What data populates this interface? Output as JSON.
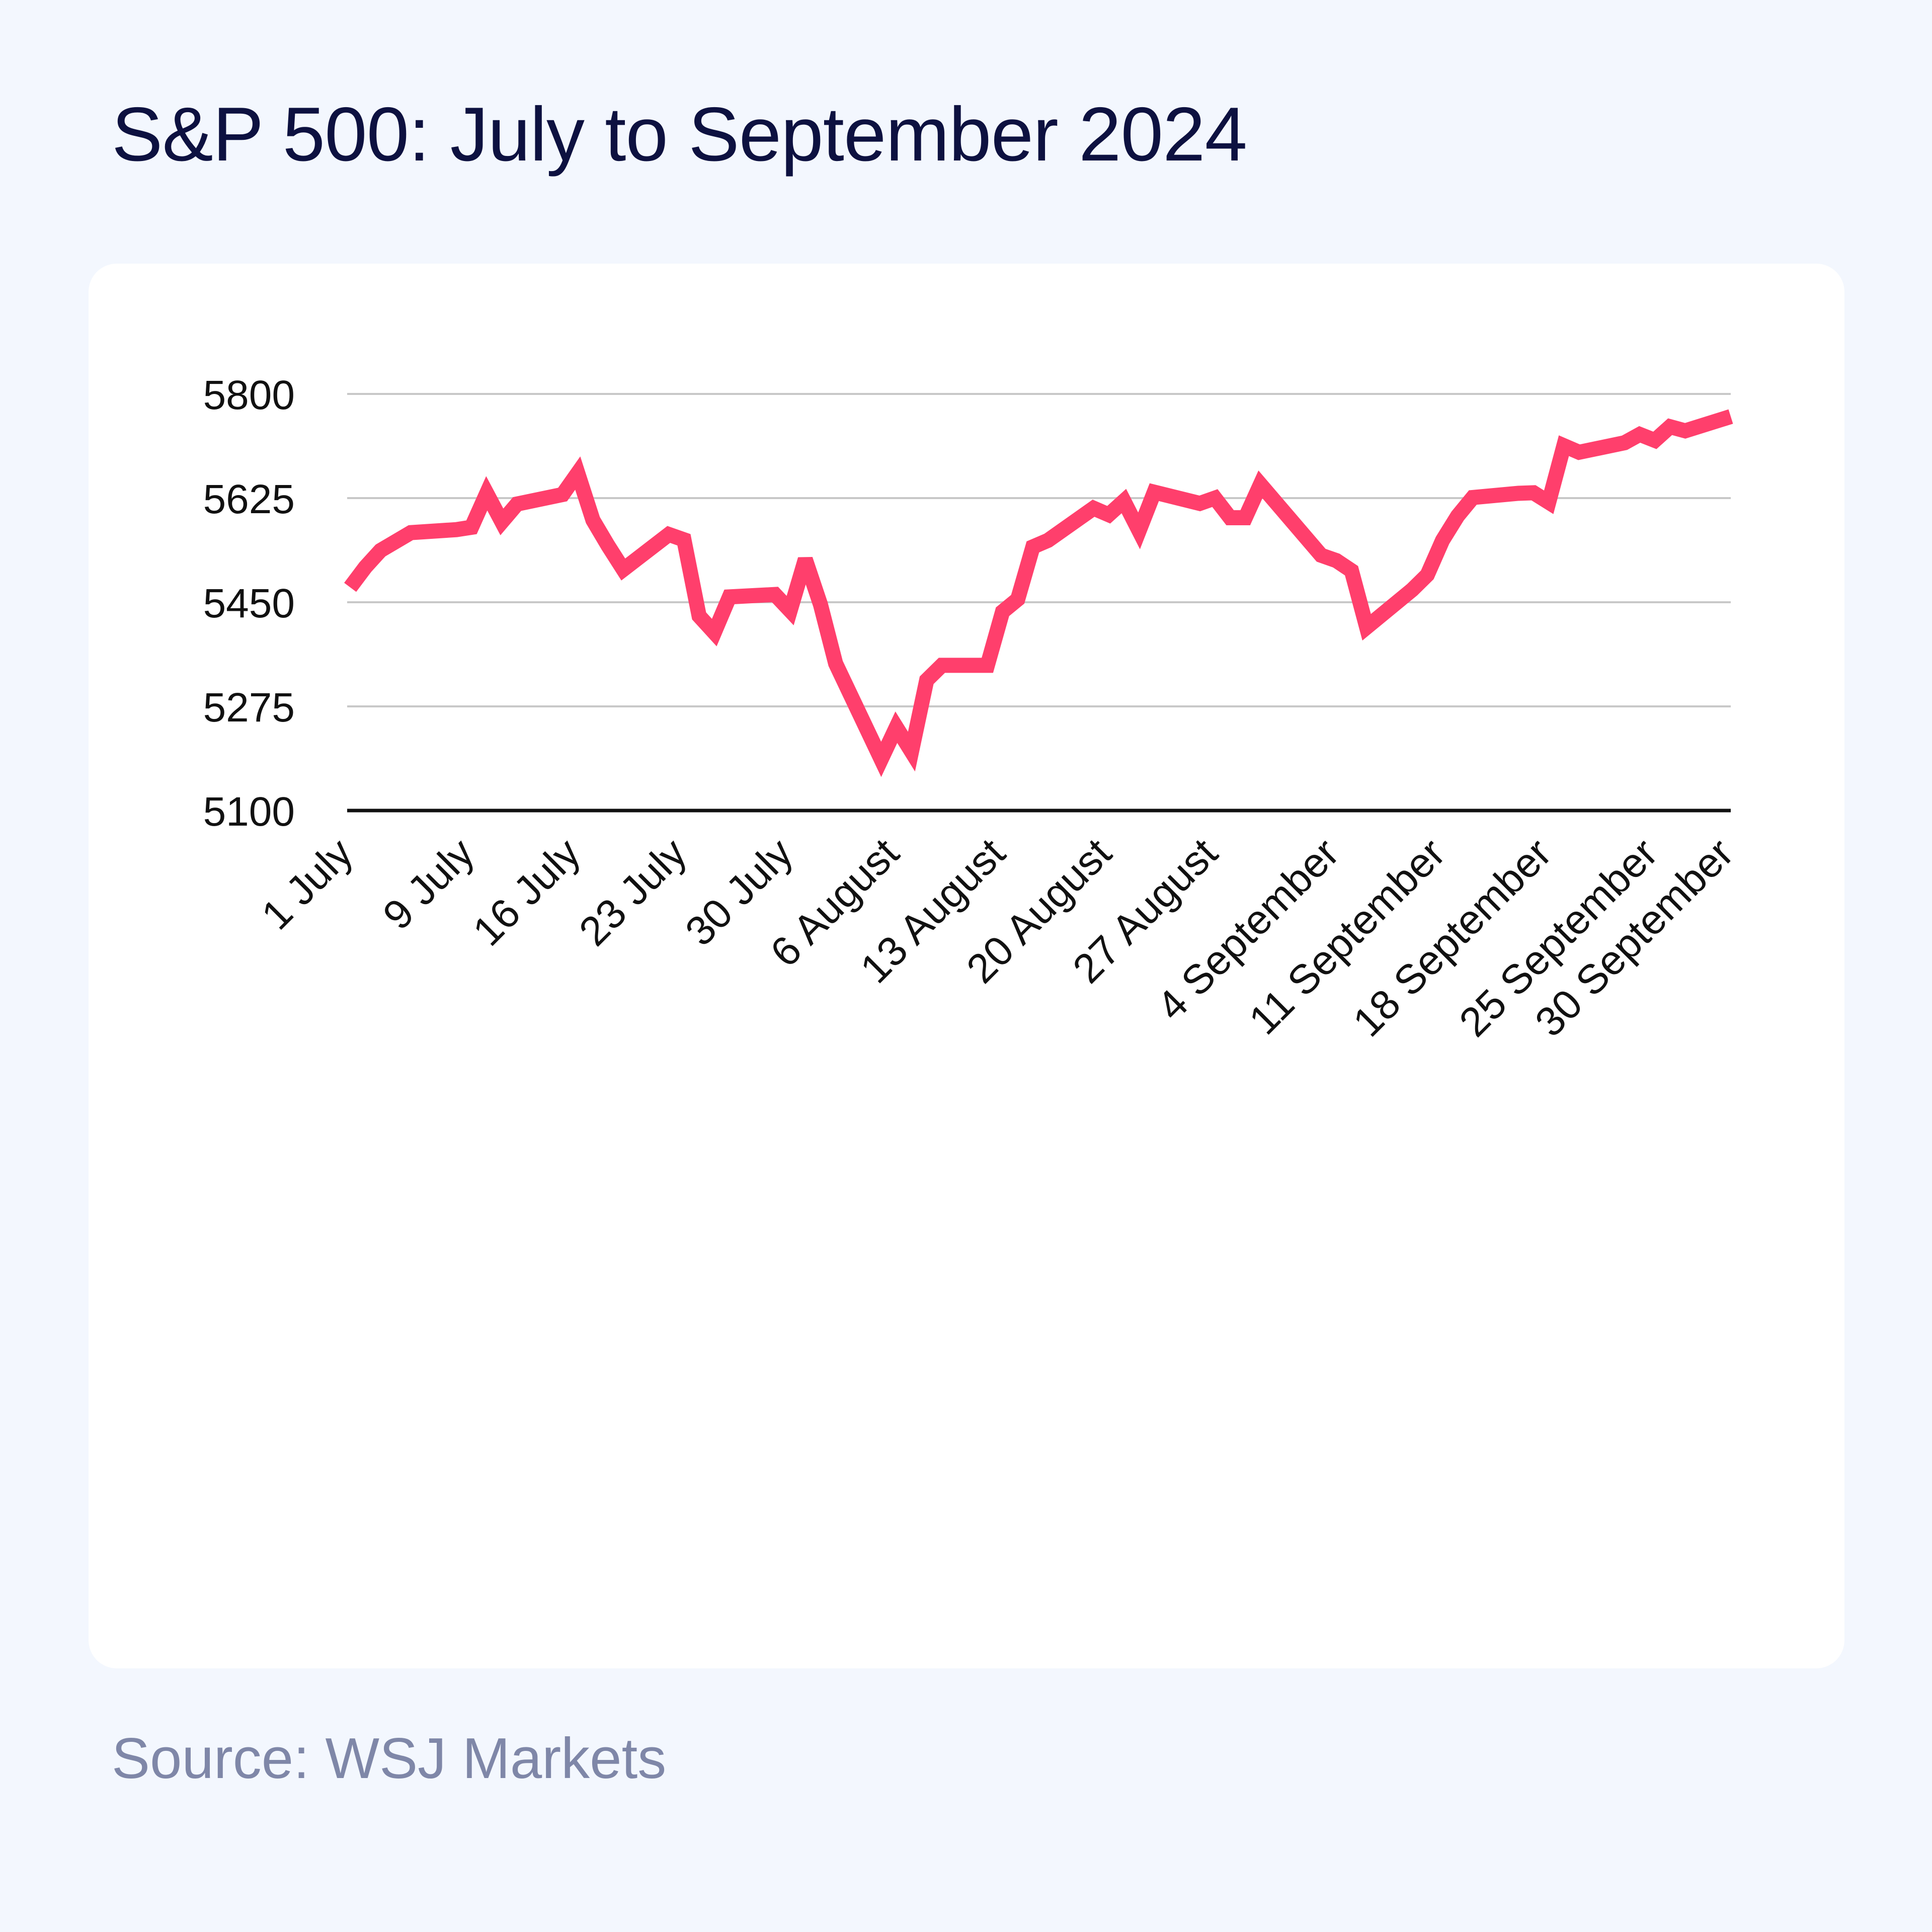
{
  "title": "S&P 500: July to September 2024",
  "source": "Source: WSJ Markets",
  "colors": {
    "background": "#f3f7fe",
    "card": "#ffffff",
    "line": "#ff3f6c",
    "grid": "#c8c8c8",
    "baseline": "#111111",
    "title": "#0d1140",
    "source": "#7f87a8"
  },
  "chart_data": {
    "type": "line",
    "title": "S&P 500: July to September 2024",
    "xlabel": "",
    "ylabel": "",
    "ylim": [
      5100,
      5800
    ],
    "yticks": [
      5100,
      5275,
      5450,
      5625,
      5800
    ],
    "grid": true,
    "legend": "none",
    "xtick_labels": [
      {
        "label": "1 July",
        "date": "2024-07-01"
      },
      {
        "label": "9 July",
        "date": "2024-07-09"
      },
      {
        "label": "16 July",
        "date": "2024-07-16"
      },
      {
        "label": "23 July",
        "date": "2024-07-23"
      },
      {
        "label": "30 July",
        "date": "2024-07-30"
      },
      {
        "label": "6 August",
        "date": "2024-08-06"
      },
      {
        "label": "13 August",
        "date": "2024-08-13"
      },
      {
        "label": "20 August",
        "date": "2024-08-20"
      },
      {
        "label": "27 August",
        "date": "2024-08-27"
      },
      {
        "label": "4 September",
        "date": "2024-09-04"
      },
      {
        "label": "11 September",
        "date": "2024-09-11"
      },
      {
        "label": "18 September",
        "date": "2024-09-18"
      },
      {
        "label": "25 September",
        "date": "2024-09-25"
      },
      {
        "label": "30 September",
        "date": "2024-09-30"
      }
    ],
    "series": [
      {
        "x": [
          "2024-07-01",
          "2024-07-02",
          "2024-07-03",
          "2024-07-05",
          "2024-07-08",
          "2024-07-09",
          "2024-07-10",
          "2024-07-11",
          "2024-07-12",
          "2024-07-15",
          "2024-07-16",
          "2024-07-17",
          "2024-07-18",
          "2024-07-19",
          "2024-07-22",
          "2024-07-23",
          "2024-07-24",
          "2024-07-25",
          "2024-07-26",
          "2024-07-29",
          "2024-07-30",
          "2024-07-31",
          "2024-08-01",
          "2024-08-02",
          "2024-08-05",
          "2024-08-06",
          "2024-08-07",
          "2024-08-08",
          "2024-08-09",
          "2024-08-12",
          "2024-08-13",
          "2024-08-14",
          "2024-08-15",
          "2024-08-16",
          "2024-08-19",
          "2024-08-20",
          "2024-08-21",
          "2024-08-22",
          "2024-08-23",
          "2024-08-26",
          "2024-08-27",
          "2024-08-28",
          "2024-08-29",
          "2024-08-30",
          "2024-09-03",
          "2024-09-04",
          "2024-09-05",
          "2024-09-06",
          "2024-09-09",
          "2024-09-10",
          "2024-09-11",
          "2024-09-12",
          "2024-09-13",
          "2024-09-16",
          "2024-09-17",
          "2024-09-18",
          "2024-09-19",
          "2024-09-20",
          "2024-09-23",
          "2024-09-24",
          "2024-09-25",
          "2024-09-26",
          "2024-09-27",
          "2024-09-30"
        ],
        "values": [
          5475,
          5509,
          5537,
          5567,
          5572,
          5576,
          5633,
          5585,
          5615,
          5631,
          5667,
          5588,
          5545,
          5505,
          5564,
          5555,
          5427,
          5399,
          5459,
          5463,
          5436,
          5522,
          5446,
          5347,
          5186,
          5240,
          5199,
          5319,
          5344,
          5344,
          5434,
          5455,
          5543,
          5554,
          5608,
          5597,
          5620,
          5570,
          5635,
          5616,
          5625,
          5592,
          5592,
          5648,
          5529,
          5520,
          5503,
          5408,
          5471,
          5496,
          5554,
          5595,
          5626,
          5633,
          5634,
          5618,
          5713,
          5702,
          5718,
          5732,
          5722,
          5745,
          5738,
          5762
        ]
      }
    ]
  }
}
